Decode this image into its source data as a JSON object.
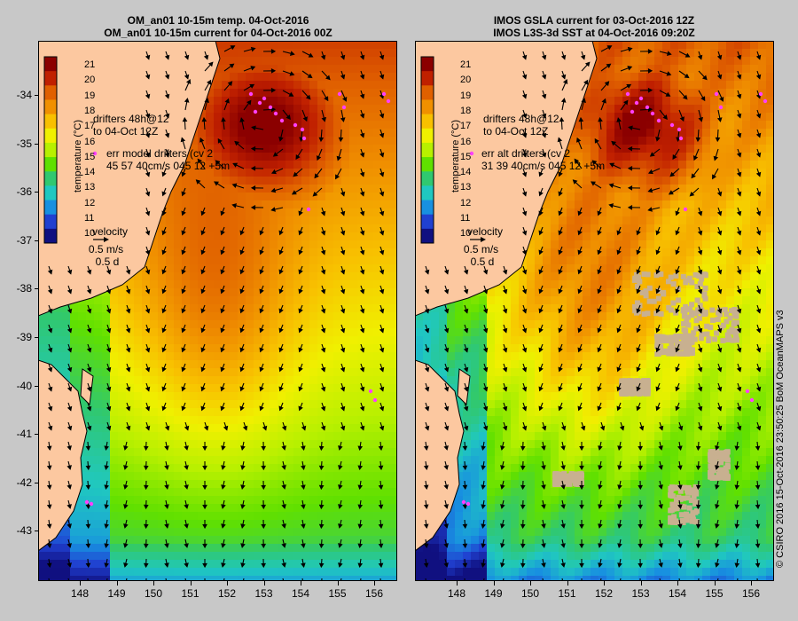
{
  "panels": [
    {
      "id": "left",
      "title_line1": "OM_an01 10-15m temp. 04-Oct-2016",
      "title_line2": "OM_an01 10-15m current for 04-Oct-2016 00Z",
      "drifters_label_1": "drifters 48h@12",
      "drifters_label_2": "to 04-Oct 12Z",
      "err_label_1": "err model drifters (cv 2",
      "err_label_2": "45 57 40cm/s 045 12 +5m",
      "velocity_label": "velocity",
      "velocity_scale": "0.5 m/s",
      "velocity_time": "0.5 d",
      "colorbar_title": "temperature (°C)"
    },
    {
      "id": "right",
      "title_line1": "IMOS GSLA current for 03-Oct-2016 12Z",
      "title_line2": "IMOS L3S-3d SST at 04-Oct-2016 09:20Z",
      "drifters_label_1": "drifters 48h@12",
      "drifters_label_2": "to 04-Oct 12Z",
      "err_label_1": "err alt drifters (cv 2",
      "err_label_2": "31 39 40cm/s 045 12 +5m",
      "velocity_label": "velocity",
      "velocity_scale": "0.5 m/s",
      "velocity_time": "0.5 d",
      "colorbar_title": "temperature (°C)"
    }
  ],
  "colorbar_ticks": [
    "21",
    "20",
    "19",
    "18",
    "17",
    "16",
    "15",
    "14",
    "13",
    "12",
    "11",
    "10"
  ],
  "colorbar_colors": [
    "#8b0000",
    "#c02000",
    "#e06000",
    "#f09000",
    "#f8c000",
    "#f0f000",
    "#b8f000",
    "#60e000",
    "#30c870",
    "#20c8c0",
    "#1890e0",
    "#2040d0",
    "#101080"
  ],
  "lat_ticks": [
    "-34",
    "-35",
    "-36",
    "-37",
    "-38",
    "-39",
    "-40",
    "-41",
    "-42",
    "-43"
  ],
  "lon_ticks": [
    "148",
    "149",
    "150",
    "151",
    "152",
    "153",
    "154",
    "155",
    "156"
  ],
  "credit": "© CSIRO 2016   15-Oct-2016 23:50:25 BoM OceanMAPS v3",
  "colors": {
    "land": "#fcc8a0",
    "drifter": "#ff40ff",
    "warm_core": "#9a1a00",
    "cloud": "#c8b090",
    "coast": "#000000"
  }
}
